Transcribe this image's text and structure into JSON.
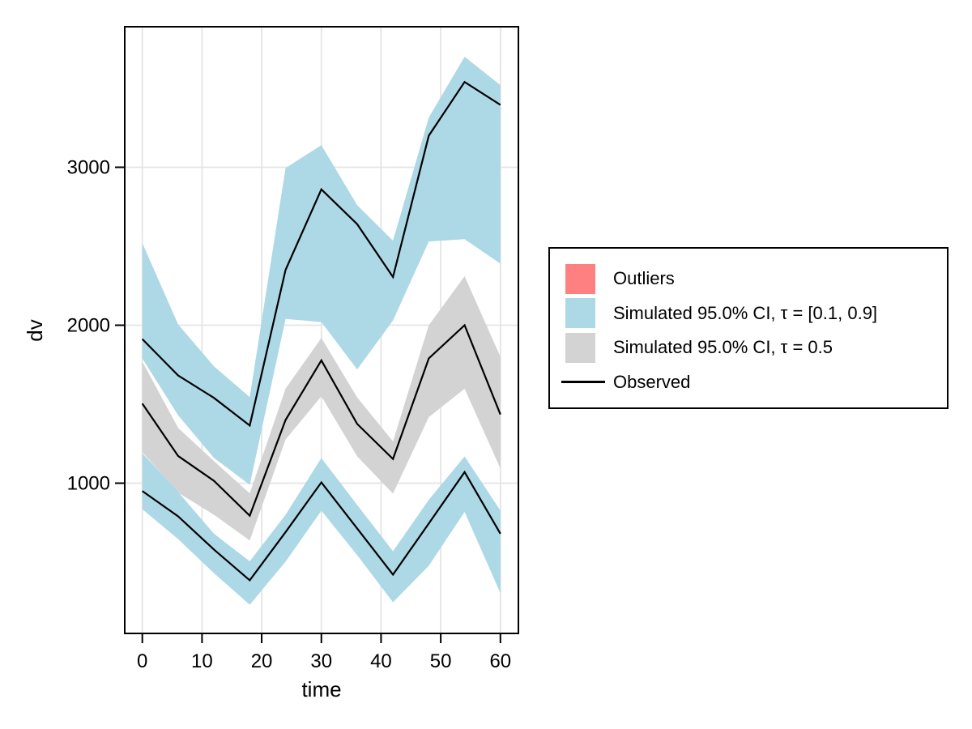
{
  "figure": {
    "background": "#ffffff"
  },
  "legend": {
    "items": [
      {
        "label": "Outliers",
        "color": "#FF8080",
        "swatch": "box"
      },
      {
        "label": "Simulated 95.0% CI, τ = [0.1, 0.9]",
        "color": "#ADD8E6",
        "swatch": "box"
      },
      {
        "label": "Simulated 95.0% CI, τ = 0.5",
        "color": "#D3D3D3",
        "swatch": "box"
      },
      {
        "label": "Observed",
        "color": "#000000",
        "swatch": "line"
      }
    ]
  },
  "chart_data": {
    "type": "area",
    "subtype": "vpc-quantile-confidence-bands",
    "title": "",
    "xlabel": "time",
    "ylabel": "dv",
    "xticks": [
      0,
      10,
      20,
      30,
      40,
      50,
      60
    ],
    "yticks": [
      1000,
      2000,
      3000
    ],
    "xlim": [
      0,
      60
    ],
    "ylim": [
      30,
      3880
    ],
    "grid": true,
    "legend_position": "right-outside",
    "colors": {
      "band_ci": "#ADD8E6",
      "band_median_ci": "#D3D3D3",
      "observed": "#000000",
      "outliers": "#FF8080",
      "gridline": "#E4E4E4",
      "spine": "#000000"
    },
    "x": [
      0,
      6,
      12,
      18,
      24,
      30,
      36,
      42,
      48,
      54,
      60
    ],
    "bands": [
      {
        "name": "Simulated 95.0% CI, τ = 0.5",
        "color": "#D3D3D3",
        "hi": [
          1770,
          1350,
          1140,
          935,
          1598,
          1919,
          1543,
          1264,
          2000,
          2310,
          1800
        ],
        "lo": [
          1196,
          940,
          800,
          637,
          1276,
          1550,
          1170,
          934,
          1418,
          1598,
          1093
        ]
      },
      {
        "name": "Simulated 95.0% CI, τ = 0.9 (upper band)",
        "color": "#ADD8E6",
        "hi": [
          2520,
          2005,
          1740,
          1545,
          2995,
          3140,
          2760,
          2535,
          3315,
          3700,
          3520
        ],
        "lo": [
          1790,
          1430,
          1160,
          990,
          2040,
          2020,
          1720,
          2030,
          2530,
          2545,
          2390
        ]
      },
      {
        "name": "Simulated 95.0% CI, τ = 0.1 (lower band)",
        "color": "#ADD8E6",
        "hi": [
          1190,
          944,
          680,
          505,
          800,
          1159,
          862,
          569,
          895,
          1169,
          826
        ],
        "lo": [
          835,
          646,
          430,
          230,
          503,
          826,
          544,
          246,
          477,
          818,
          303
        ]
      }
    ],
    "series": [
      {
        "name": "Observed 90th percentile",
        "color": "#000000",
        "values": [
          1912,
          1682,
          1540,
          1365,
          2350,
          2860,
          2640,
          2305,
          3200,
          3540,
          3395
        ]
      },
      {
        "name": "Observed median",
        "color": "#000000",
        "values": [
          1504,
          1172,
          1015,
          794,
          1400,
          1777,
          1375,
          1153,
          1790,
          2000,
          1435
        ]
      },
      {
        "name": "Observed 10th percentile",
        "color": "#000000",
        "values": [
          950,
          790,
          580,
          385,
          690,
          1005,
          713,
          421,
          745,
          1070,
          680
        ]
      }
    ]
  }
}
